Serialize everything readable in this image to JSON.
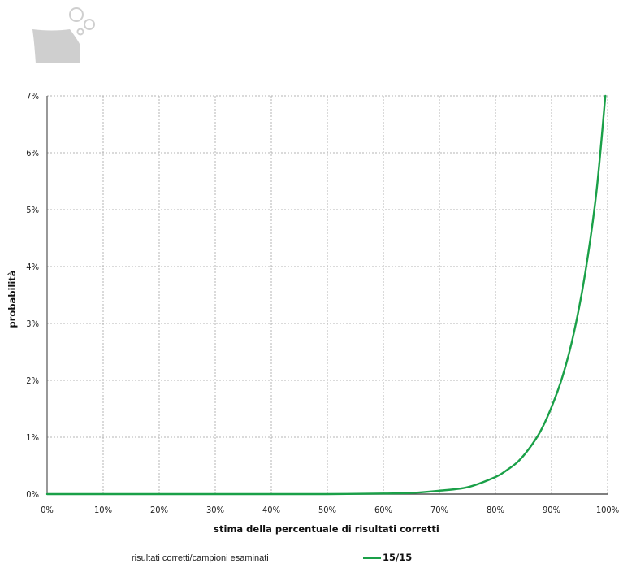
{
  "colors": {
    "series": "#1aa048",
    "grid": "#b4b4b4",
    "axis": "#555555",
    "logo": "#cfcfcf"
  },
  "logo_icon": "sinking-ship-bubbles-icon",
  "legend": {
    "title": "risultati corretti/campioni esaminati",
    "position": "bottom"
  },
  "chart_data": {
    "type": "line",
    "title": "",
    "xlabel": "stima della percentuale di risultati corretti",
    "ylabel": "probabilità",
    "xlim": [
      0,
      100
    ],
    "ylim": [
      0,
      7
    ],
    "x_ticks": [
      "0%",
      "10%",
      "20%",
      "30%",
      "40%",
      "50%",
      "60%",
      "70%",
      "80%",
      "90%",
      "100%"
    ],
    "y_ticks": [
      "0%",
      "1%",
      "2%",
      "3%",
      "4%",
      "5%",
      "6%",
      "7%"
    ],
    "grid": true,
    "x_unit": "%",
    "y_unit": "%",
    "series": [
      {
        "name": "15/15",
        "x": [
          0,
          10,
          20,
          30,
          40,
          50,
          60,
          65,
          70,
          75,
          80,
          82,
          84,
          86,
          88,
          90,
          92,
          94,
          96,
          98,
          99.6
        ],
        "y": [
          0,
          0,
          0,
          0,
          0,
          0,
          0.01,
          0.02,
          0.06,
          0.12,
          0.3,
          0.42,
          0.57,
          0.8,
          1.1,
          1.53,
          2.08,
          2.84,
          3.88,
          5.3,
          7.0
        ]
      }
    ]
  }
}
